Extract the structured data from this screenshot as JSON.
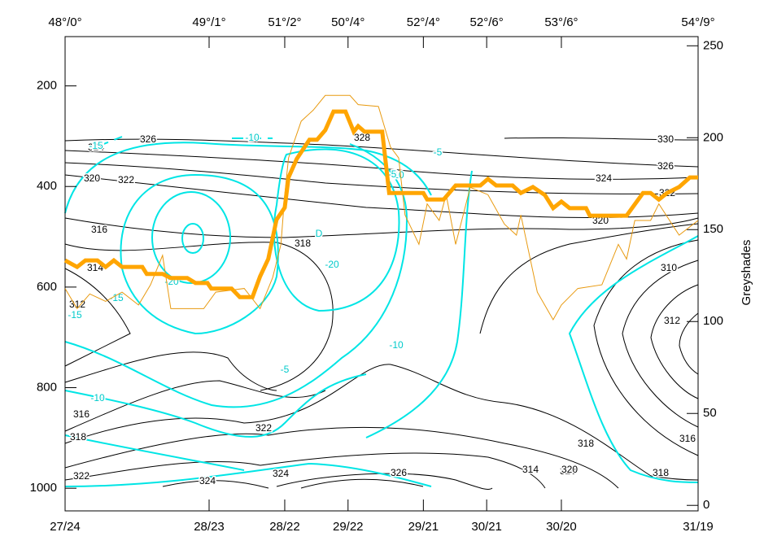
{
  "chart_data": {
    "type": "line",
    "y2_label": "Greyshades",
    "xlim": [
      0,
      100
    ],
    "xticks_top": [
      {
        "value": 0,
        "label": "48°/0°"
      },
      {
        "value": 22.75,
        "label": "49°/1°"
      },
      {
        "value": 34.7,
        "label": "51°/2°"
      },
      {
        "value": 44.7,
        "label": "50°/4°"
      },
      {
        "value": 56.6,
        "label": "52°/4°"
      },
      {
        "value": 66.6,
        "label": "52°/6°"
      },
      {
        "value": 78.4,
        "label": "53°/6°"
      },
      {
        "value": 100,
        "label": "54°/9°"
      }
    ],
    "xticks": [
      {
        "value": 0,
        "label": "27/24"
      },
      {
        "value": 22.75,
        "label": "28/23"
      },
      {
        "value": 34.7,
        "label": "28/22"
      },
      {
        "value": 44.7,
        "label": "29/22"
      },
      {
        "value": 56.6,
        "label": "29/21"
      },
      {
        "value": 66.6,
        "label": "30/21"
      },
      {
        "value": 78.4,
        "label": "30/20"
      },
      {
        "value": 100,
        "label": "31/19"
      }
    ],
    "ylim": [
      1045,
      102
    ],
    "yticks": [
      200,
      400,
      600,
      800,
      1000
    ],
    "y2lim": [
      -3,
      255
    ],
    "y2ticks": [
      0,
      50,
      100,
      150,
      200,
      250
    ],
    "series": [
      {
        "color": "#ffa500",
        "width": 5,
        "x": [
          0,
          1.9,
          3.2,
          5.1,
          6.4,
          7.7,
          9,
          12.2,
          12.9,
          15.4,
          16.7,
          19.3,
          20.6,
          22.5,
          23.1,
          26.3,
          27.6,
          29.6,
          30.8,
          32.1,
          33.4,
          34.7,
          35.3,
          36.6,
          38.6,
          39.8,
          41.1,
          42.4,
          44.3,
          45.6,
          46.3,
          47.3,
          50.1,
          51.2,
          56.6,
          57.2,
          59.8,
          61.7,
          65.6,
          66.8,
          68.1,
          70.7,
          72,
          73.9,
          75.8,
          77.1,
          78.4,
          79.7,
          82.3,
          82.9,
          88.7,
          91.3,
          92.5,
          93.8,
          95.1,
          97,
          98.7,
          100
        ],
        "values": [
          547,
          560,
          547,
          547,
          560,
          547,
          560,
          560,
          574,
          574,
          582,
          582,
          592,
          592,
          603,
          603,
          620,
          620,
          579,
          544,
          466,
          442,
          382,
          345,
          307,
          307,
          288,
          251,
          251,
          291,
          280,
          291,
          291,
          413,
          413,
          426,
          426,
          398,
          398,
          385,
          398,
          398,
          413,
          401,
          417,
          443,
          430,
          443,
          443,
          458,
          458,
          413,
          413,
          426,
          413,
          401,
          382,
          382
        ]
      },
      {
        "color": "#e89a10",
        "width": 1,
        "axis": "y2",
        "x": [
          0,
          1.9,
          3.9,
          6.4,
          9,
          11.6,
          13.5,
          15.4,
          16.7,
          21.9,
          23.8,
          28.3,
          30.8,
          32.8,
          34.1,
          34.7,
          35.3,
          37.3,
          39.2,
          41.1,
          45,
          46.3,
          49.5,
          51.4,
          52.7,
          53.7,
          55.9,
          57.2,
          59.1,
          60.2,
          61.7,
          64,
          66.8,
          69.4,
          71.3,
          72,
          74.6,
          77.1,
          78.4,
          81,
          84.8,
          87.4,
          88.7,
          90,
          92.5,
          93.8,
          97,
          100
        ],
        "values": [
          118,
          107,
          115,
          111,
          116,
          109,
          120,
          136,
          107,
          107,
          116,
          118,
          107,
          124,
          142,
          169,
          189,
          209,
          215,
          223,
          223,
          218,
          217,
          195,
          189,
          158,
          142,
          164,
          155,
          169,
          142,
          173,
          169,
          153,
          147,
          158,
          116,
          101,
          109,
          118,
          120,
          142,
          134,
          155,
          155,
          164,
          147,
          155
        ]
      }
    ],
    "contour_labels": [
      "326",
      "324",
      "322",
      "320",
      "316",
      "314",
      "312",
      "316",
      "318",
      "322",
      "324",
      "324",
      "326",
      "328",
      "318",
      "320",
      "324",
      "326",
      "330",
      "322",
      "320",
      "318",
      "314",
      "310",
      "312",
      "316",
      "318",
      "320",
      "322",
      "-10",
      "-15",
      "-20",
      "-20",
      "-5",
      "-10",
      "-5",
      "-10",
      "-15",
      "-15",
      "-10",
      "-5",
      "D"
    ]
  }
}
